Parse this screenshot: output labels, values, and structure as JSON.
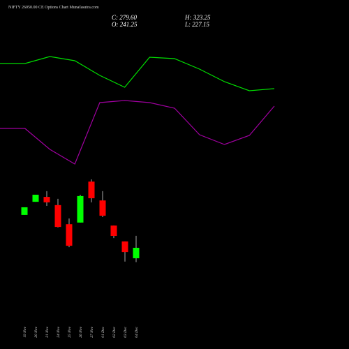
{
  "chart_data": [
    {
      "type": "candlestick",
      "title": "NIFTY 26050.00 CE Options Chart Munafasutra.com",
      "close_label": "C: 279.60",
      "open_label": "O: 241.25",
      "high_label": "H: 323.25",
      "low_label": "L: 227.15",
      "categories": [
        "19 Nov",
        "20 Nov",
        "21 Nov",
        "24 Nov",
        "25 Nov",
        "26 Nov",
        "27 Nov",
        "01 Dec",
        "02 Dec",
        "03 Dec",
        "04 Dec"
      ],
      "open": [
        400,
        448,
        466,
        436,
        366,
        372,
        522,
        453,
        361,
        303,
        241.25
      ],
      "high": [
        428,
        474,
        487,
        459,
        387,
        474,
        530,
        487,
        361,
        303,
        323.25
      ],
      "low": [
        400,
        448,
        433,
        354,
        282,
        372,
        446,
        392,
        315,
        229,
        227.15
      ],
      "close": [
        428,
        474,
        446,
        356,
        287,
        469,
        461,
        397,
        323,
        264,
        279.6
      ],
      "up_color": "#00ff00",
      "down_color": "#ff0000",
      "ylim": [
        164.6,
        548
      ]
    },
    {
      "type": "line",
      "series": [
        {
          "color": "#00e000",
          "values": [
            409,
            409,
            419,
            413,
            392,
            375,
            418,
            416,
            401,
            383,
            370,
            373
          ]
        },
        {
          "color": "#a000a0",
          "values": [
            316,
            316,
            286,
            265,
            353,
            356,
            353,
            345,
            307,
            293,
            306,
            348
          ]
        }
      ],
      "ylim": [
        0,
        500
      ]
    }
  ]
}
